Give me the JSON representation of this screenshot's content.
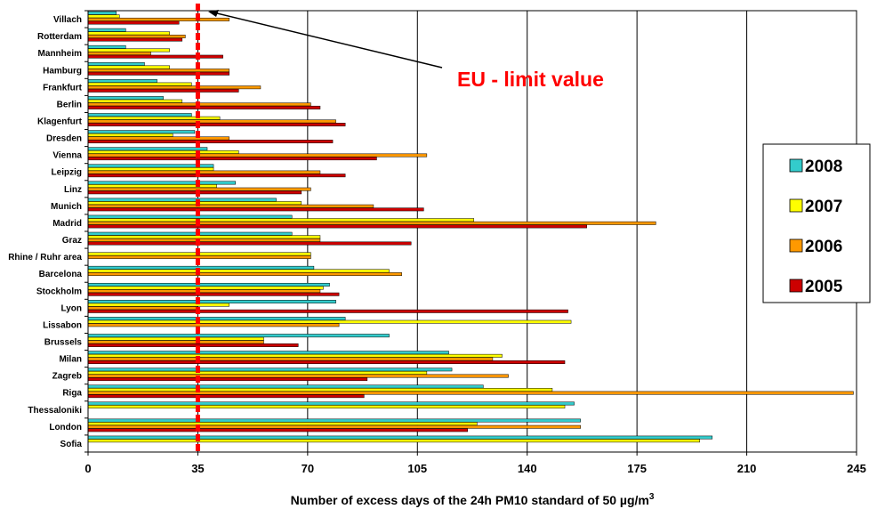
{
  "chart_data": {
    "type": "bar",
    "orientation": "horizontal",
    "xlabel": "Number of excess days of the 24h PM10 standard of 50 µg/m",
    "xlabel_sup": "3",
    "xlim": [
      0,
      245
    ],
    "xticks": [
      0,
      35,
      70,
      105,
      140,
      175,
      210,
      245
    ],
    "grid": "vertical",
    "legend_placement": "right",
    "highlight_category": "Berlin",
    "categories": [
      "Villach",
      "Rotterdam",
      "Mannheim",
      "Hamburg",
      "Frankfurt",
      "Berlin",
      "Klagenfurt",
      "Dresden",
      "Vienna",
      "Leipzig",
      "Linz",
      "Munich",
      "Madrid",
      "Graz",
      "Rhine / Ruhr area",
      "Barcelona",
      "Stockholm",
      "Lyon",
      "Lissabon",
      "Brussels",
      "Milan",
      "Zagreb",
      "Riga",
      "Thessaloniki",
      "London",
      "Sofia"
    ],
    "series": [
      {
        "name": "2008",
        "color": "#33CCCC",
        "values": [
          9,
          12,
          12,
          18,
          22,
          24,
          33,
          34,
          38,
          40,
          47,
          60,
          65,
          65,
          0,
          72,
          77,
          79,
          82,
          96,
          115,
          116,
          126,
          155,
          157,
          199
        ]
      },
      {
        "name": "2007",
        "color": "#FFFF00",
        "values": [
          10,
          26,
          26,
          26,
          33,
          30,
          42,
          27,
          48,
          40,
          41,
          68,
          123,
          74,
          71,
          96,
          75,
          45,
          154,
          56,
          132,
          108,
          148,
          152,
          124,
          195
        ]
      },
      {
        "name": "2006",
        "color": "#FF9900",
        "values": [
          45,
          31,
          20,
          45,
          55,
          71,
          79,
          45,
          108,
          74,
          71,
          91,
          181,
          74,
          71,
          100,
          74,
          35,
          80,
          56,
          129,
          134,
          244,
          0,
          157,
          0
        ]
      },
      {
        "name": "2005",
        "color": "#CC0000",
        "values": [
          29,
          30,
          43,
          45,
          48,
          74,
          82,
          78,
          92,
          82,
          68,
          107,
          159,
          103,
          0,
          0,
          80,
          153,
          0,
          67,
          152,
          89,
          88,
          0,
          121,
          0
        ]
      }
    ],
    "reference_line": {
      "value": 35,
      "label": "EU - limit value",
      "color": "#FF0000"
    }
  }
}
